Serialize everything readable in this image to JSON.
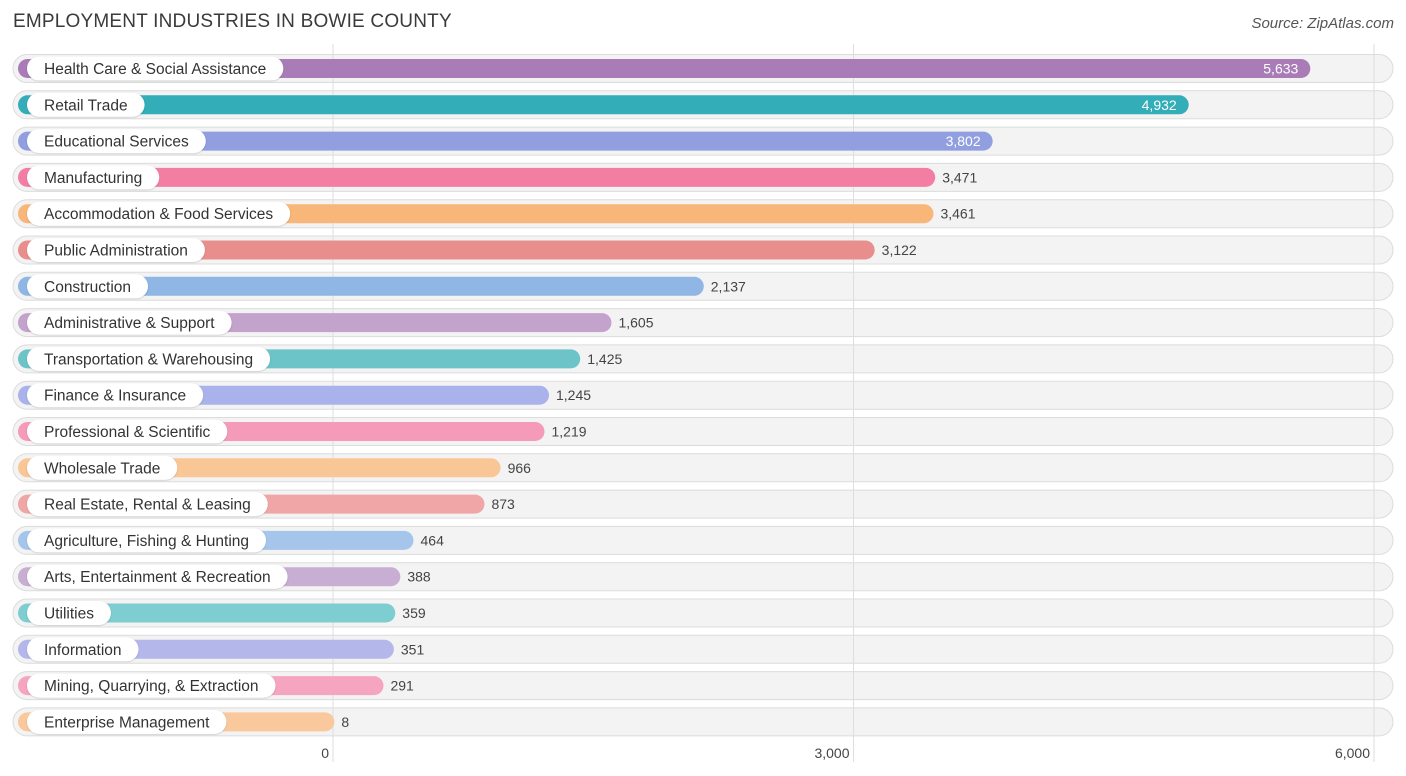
{
  "chart_data": {
    "type": "bar",
    "orientation": "horizontal",
    "title": "EMPLOYMENT INDUSTRIES IN BOWIE COUNTY",
    "source": "Source: ZipAtlas.com",
    "categories": [
      "Health Care & Social Assistance",
      "Retail Trade",
      "Educational Services",
      "Manufacturing",
      "Accommodation & Food Services",
      "Public Administration",
      "Construction",
      "Administrative & Support",
      "Transportation & Warehousing",
      "Finance & Insurance",
      "Professional & Scientific",
      "Wholesale Trade",
      "Real Estate, Rental & Leasing",
      "Agriculture, Fishing & Hunting",
      "Arts, Entertainment & Recreation",
      "Utilities",
      "Information",
      "Mining, Quarrying, & Extraction",
      "Enterprise Management"
    ],
    "values": [
      5633,
      4932,
      3802,
      3471,
      3461,
      3122,
      2137,
      1605,
      1425,
      1245,
      1219,
      966,
      873,
      464,
      388,
      359,
      351,
      291,
      8
    ],
    "value_labels": [
      "5,633",
      "4,932",
      "3,802",
      "3,471",
      "3,461",
      "3,122",
      "2,137",
      "1,605",
      "1,425",
      "1,245",
      "1,219",
      "966",
      "873",
      "464",
      "388",
      "359",
      "351",
      "291",
      "8"
    ],
    "colors": [
      "#a97cb8",
      "#33adb8",
      "#919fe0",
      "#f27fa3",
      "#f8b678",
      "#e88f8d",
      "#8fb6e4",
      "#c3a2cc",
      "#6cc4c8",
      "#a9b2ea",
      "#f59ab9",
      "#f9c796",
      "#f0a6a6",
      "#a5c5ea",
      "#c8aed2",
      "#7ecdd1",
      "#b3b7ea",
      "#f6a5c0",
      "#f9c99d"
    ],
    "xlim": [
      0,
      6000
    ],
    "xticks": [
      0,
      3000,
      6000
    ],
    "xtick_labels": [
      "0",
      "3,000",
      "6,000"
    ],
    "xlabel": "",
    "ylabel": "",
    "grid": true
  }
}
